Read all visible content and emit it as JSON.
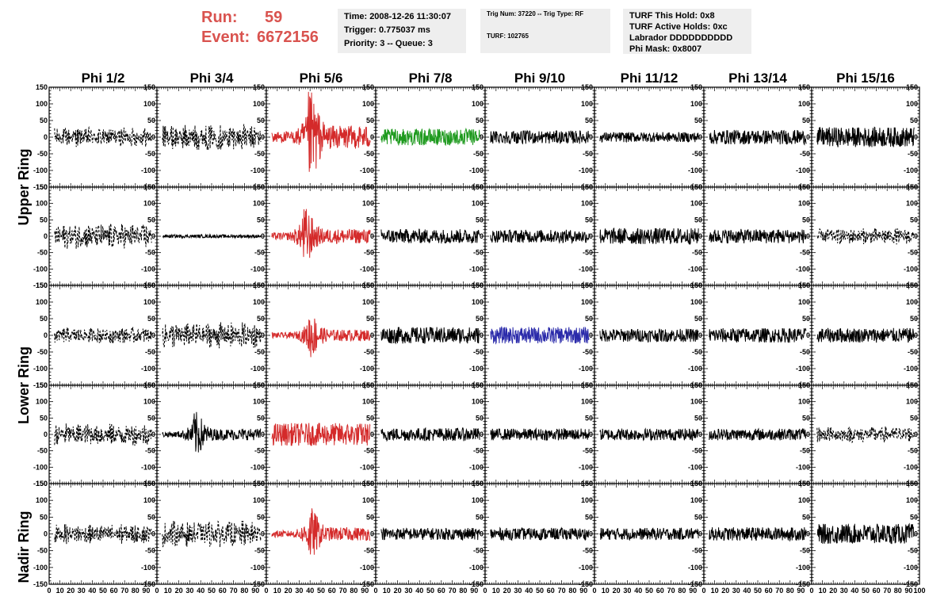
{
  "run": {
    "run_label": "Run:",
    "run_value": "59",
    "event_label": "Event:",
    "event_value": "6672156"
  },
  "time_box": {
    "time": "Time: 2008-12-26 11:30:07",
    "trigger": "Trigger: 0.775037 ms",
    "priority": "Priority: 3 -- Queue: 3"
  },
  "trig_box": {
    "trig": "Trig Num: 37220 -- Trig Type: RF",
    "turf": "TURF: 102765"
  },
  "turf_box": {
    "this_hold": "TURF This Hold: 0x8",
    "active_holds": "TURF Active Holds: 0xc",
    "labrador": "Labrador DDDDDDDDDD",
    "phi_mask": "Phi Mask: 0x8007"
  },
  "colors": {
    "red": "#d42a2a",
    "green": "#1e9a1e",
    "blue": "#2a2aaa",
    "black": "#000000"
  },
  "chart_data": {
    "type": "line",
    "columns": [
      "Phi 1/2",
      "Phi 3/4",
      "Phi 5/6",
      "Phi 7/8",
      "Phi 9/10",
      "Phi 11/12",
      "Phi 13/14",
      "Phi 15/16"
    ],
    "rings": [
      "Upper Ring",
      "Lower Ring",
      "Nadir Ring"
    ],
    "xlim": [
      0,
      100
    ],
    "ylim": [
      -150,
      150
    ],
    "x_ticks": [
      "0",
      "10",
      "20",
      "30",
      "40",
      "50",
      "60",
      "70",
      "80",
      "90",
      "100"
    ],
    "y_ticks": [
      "150",
      "100",
      "50",
      "0",
      "-50",
      "-100",
      "-150"
    ],
    "panels": [
      [
        {
          "color": "black",
          "style": "dashed",
          "amplitude": 30
        },
        {
          "color": "black",
          "style": "dashed",
          "amplitude": 40
        },
        {
          "color": "red",
          "style": "solid",
          "amplitude": 140,
          "peak_x": 40
        },
        {
          "color": "green",
          "style": "solid",
          "amplitude": 25
        },
        {
          "color": "black",
          "style": "solid",
          "amplitude": 20
        },
        {
          "color": "black",
          "style": "solid",
          "amplitude": 15
        },
        {
          "color": "black",
          "style": "solid",
          "amplitude": 22
        },
        {
          "color": "black",
          "style": "solid",
          "amplitude": 30
        }
      ],
      [
        {
          "color": "black",
          "style": "dashed",
          "amplitude": 40
        },
        {
          "color": "black",
          "style": "solid",
          "amplitude": 5
        },
        {
          "color": "red",
          "style": "solid",
          "amplitude": 90,
          "peak_x": 35
        },
        {
          "color": "black",
          "style": "solid",
          "amplitude": 22
        },
        {
          "color": "black",
          "style": "solid",
          "amplitude": 20
        },
        {
          "color": "black",
          "style": "solid",
          "amplitude": 25
        },
        {
          "color": "black",
          "style": "solid",
          "amplitude": 22
        },
        {
          "color": "black",
          "style": "dashed",
          "amplitude": 25
        }
      ],
      [
        {
          "color": "black",
          "style": "dashed",
          "amplitude": 25
        },
        {
          "color": "black",
          "style": "dashed",
          "amplitude": 40
        },
        {
          "color": "red",
          "style": "solid",
          "amplitude": 70,
          "peak_x": 40
        },
        {
          "color": "black",
          "style": "solid",
          "amplitude": 25
        },
        {
          "color": "blue",
          "style": "solid",
          "amplitude": 25
        },
        {
          "color": "black",
          "style": "solid",
          "amplitude": 20
        },
        {
          "color": "black",
          "style": "solid",
          "amplitude": 22
        },
        {
          "color": "black",
          "style": "solid",
          "amplitude": 22
        }
      ],
      [
        {
          "color": "black",
          "style": "dashed",
          "amplitude": 35
        },
        {
          "color": "black",
          "style": "solid",
          "amplitude": 70,
          "peak_x": 35
        },
        {
          "color": "red",
          "style": "solid",
          "amplitude": 35
        },
        {
          "color": "black",
          "style": "solid",
          "amplitude": 20
        },
        {
          "color": "black",
          "style": "solid",
          "amplitude": 18
        },
        {
          "color": "black",
          "style": "solid",
          "amplitude": 18
        },
        {
          "color": "black",
          "style": "solid",
          "amplitude": 18
        },
        {
          "color": "black",
          "style": "dashed",
          "amplitude": 25
        }
      ],
      [
        {
          "color": "black",
          "style": "dashed",
          "amplitude": 30
        },
        {
          "color": "black",
          "style": "dashed",
          "amplitude": 40
        },
        {
          "color": "red",
          "style": "solid",
          "amplitude": 80,
          "peak_x": 40
        },
        {
          "color": "black",
          "style": "solid",
          "amplitude": 18
        },
        {
          "color": "black",
          "style": "solid",
          "amplitude": 18
        },
        {
          "color": "black",
          "style": "solid",
          "amplitude": 18
        },
        {
          "color": "black",
          "style": "solid",
          "amplitude": 20
        },
        {
          "color": "black",
          "style": "solid",
          "amplitude": 30
        }
      ]
    ]
  }
}
